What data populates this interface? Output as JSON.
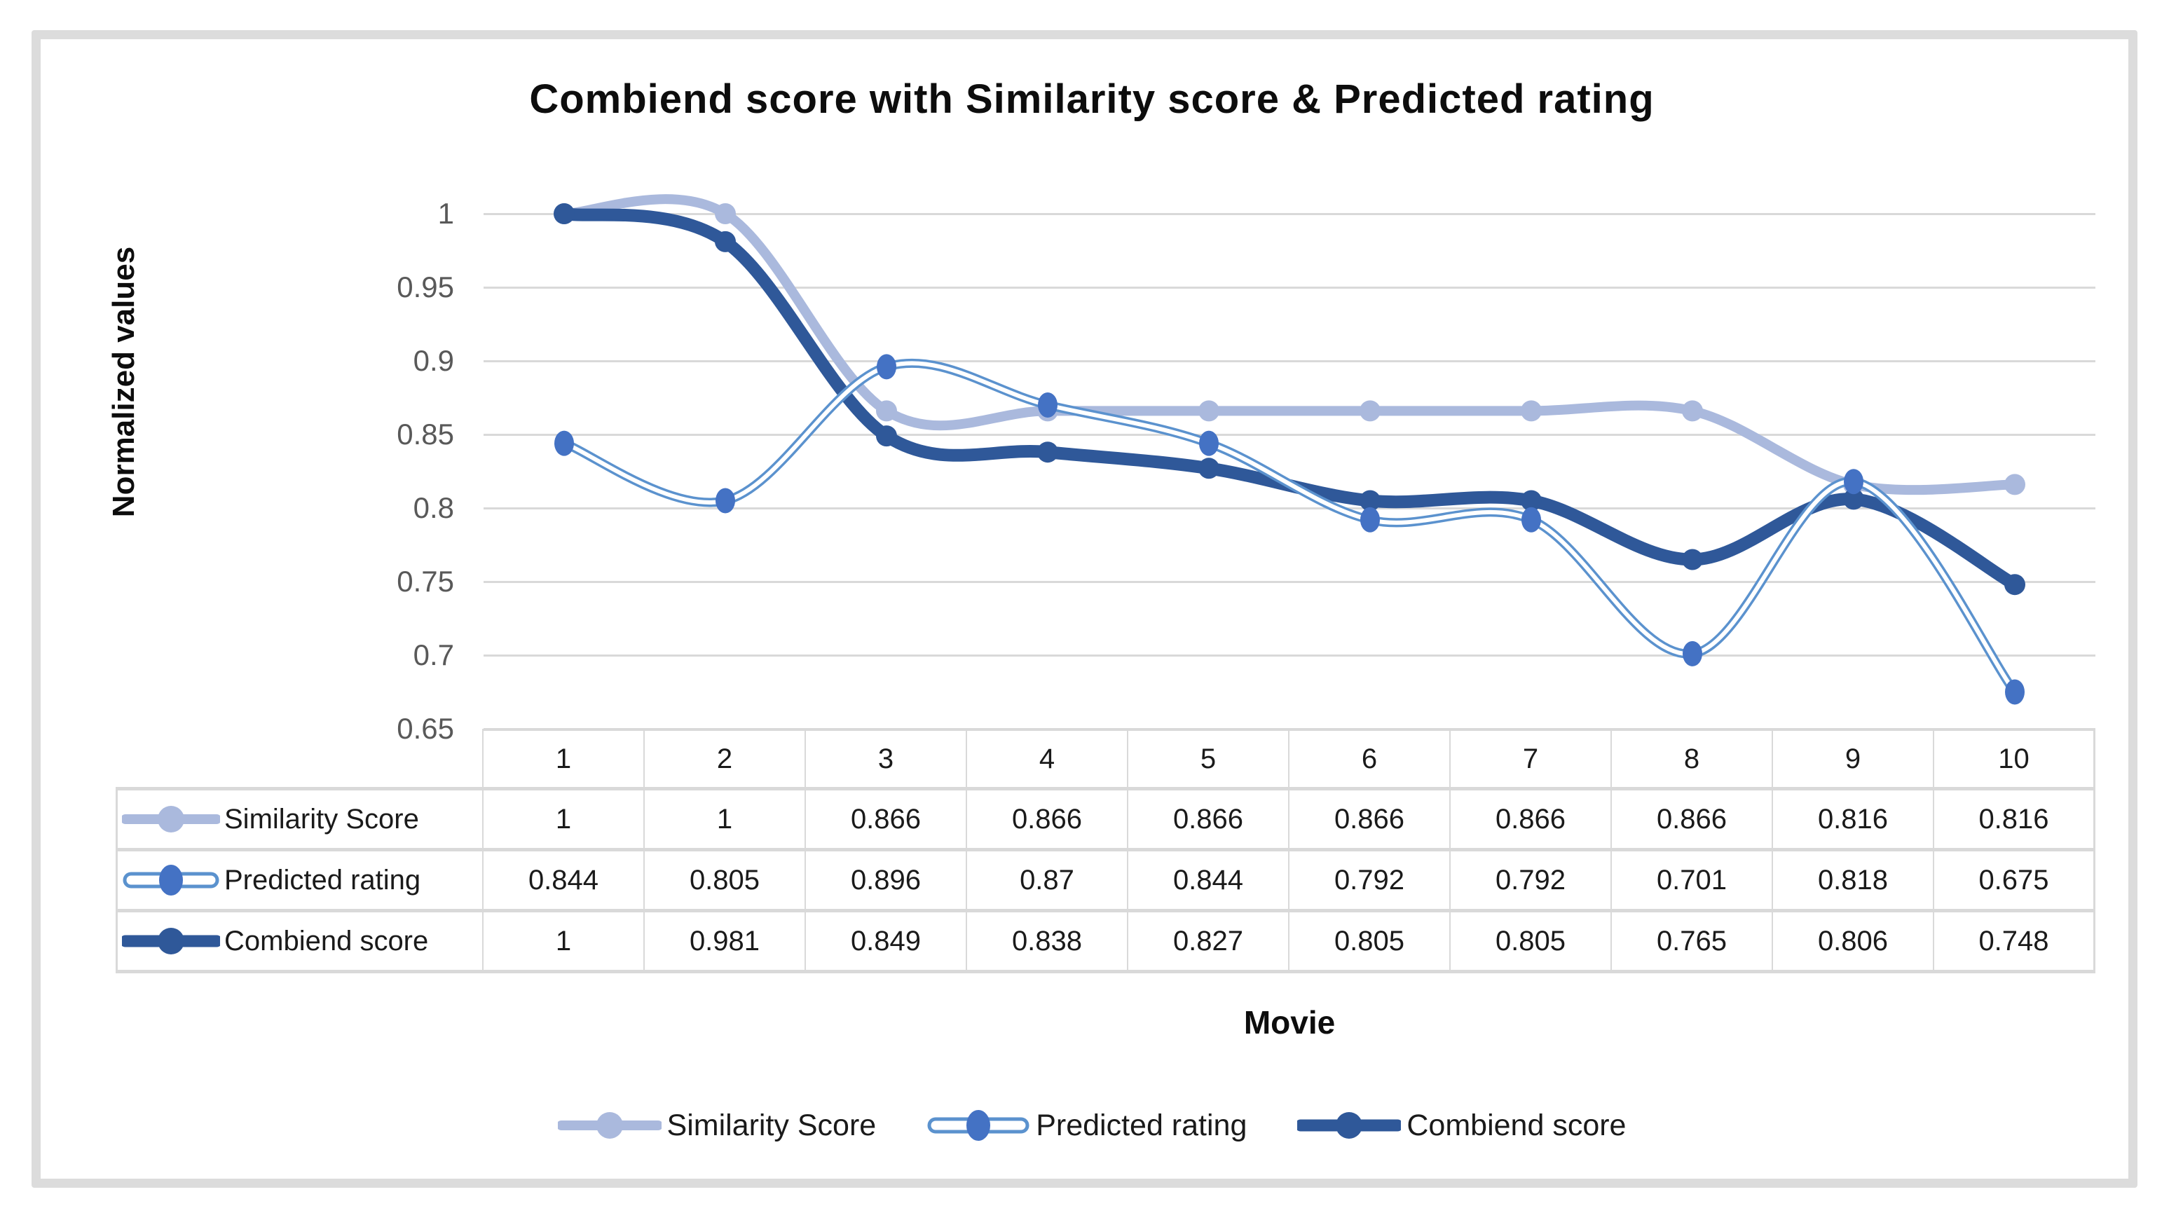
{
  "title": "Combiend score with Similarity score & Predicted rating",
  "y_axis_title": "Normalized values",
  "x_axis_title": "Movie",
  "colors": {
    "similarity": "#aab9dd",
    "predicted_line": "#5b92ce",
    "predicted_marker": "#4472c4",
    "combiend": "#2f5899",
    "gridline": "#d9d9d9",
    "axis_text": "#595959",
    "frame_border": "#dcdcdc",
    "table_border": "#d9d9d9",
    "table_text": "#1a1a1a"
  },
  "chart_data": {
    "type": "line",
    "title": "Combiend score with Similarity score & Predicted rating",
    "xlabel": "Movie",
    "ylabel": "Normalized values",
    "categories": [
      "1",
      "2",
      "3",
      "4",
      "5",
      "6",
      "7",
      "8",
      "9",
      "10"
    ],
    "series": [
      {
        "name": "Similarity Score",
        "values": [
          1,
          1,
          0.866,
          0.866,
          0.866,
          0.866,
          0.866,
          0.866,
          0.816,
          0.816
        ],
        "color": "#aab9dd",
        "style": "solid"
      },
      {
        "name": "Predicted rating",
        "values": [
          0.844,
          0.805,
          0.896,
          0.87,
          0.844,
          0.792,
          0.792,
          0.701,
          0.818,
          0.675
        ],
        "color": "#5b92ce",
        "marker_color": "#4472c4",
        "style": "double"
      },
      {
        "name": "Combiend score",
        "values": [
          1,
          0.981,
          0.849,
          0.838,
          0.827,
          0.805,
          0.805,
          0.765,
          0.806,
          0.748
        ],
        "color": "#2f5899",
        "style": "solid"
      }
    ],
    "ylim": [
      0.65,
      1.0
    ],
    "yticks": [
      "1",
      "0.95",
      "0.9",
      "0.85",
      "0.8",
      "0.75",
      "0.7",
      "0.65"
    ],
    "grid": "horizontal",
    "legend_position": "bottom",
    "smooth": true,
    "show_data_table": true
  }
}
